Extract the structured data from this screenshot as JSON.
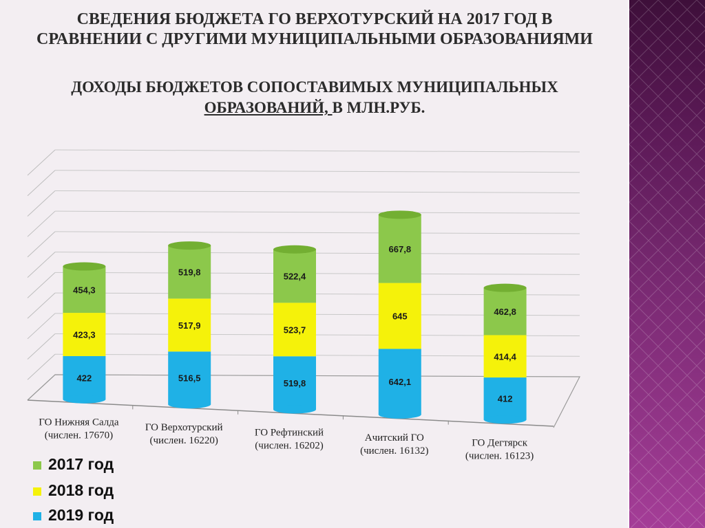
{
  "title_line1": "СВЕДЕНИЯ БЮДЖЕТА ГО ВЕРХОТУРСКИЙ НА 2017 ГОД В",
  "title_line2": "СРАВНЕНИИ С ДРУГИМИ МУНИЦИПАЛЬНЫМИ ОБРАЗОВАНИЯМИ",
  "subtitle_line1": "ДОХОДЫ БЮДЖЕТОВ СОПОСТАВИМЫХ МУНИЦИПАЛЬНЫХ",
  "subtitle_line2_underlined": "ОБРАЗОВАНИЙ, ",
  "subtitle_line2_rest": "В МЛН.РУБ.",
  "chart_data": {
    "type": "bar",
    "stacked": true,
    "categories": [
      [
        "ГО Нижняя Салда",
        "(числен. 17670)"
      ],
      [
        "ГО Верхотурский",
        "(числен. 16220)"
      ],
      [
        "ГО Рефтинский",
        "(числен. 16202)"
      ],
      [
        "Ачитский ГО",
        "(числен. 16132)"
      ],
      [
        "ГО Дегтярск",
        "(числен. 16123)"
      ]
    ],
    "series": [
      {
        "name": "2019 год",
        "color": "#1fb1e6",
        "values": [
          422,
          516.5,
          519.8,
          642.1,
          412
        ],
        "labels": [
          "422",
          "516,5",
          "519,8",
          "642,1",
          "412"
        ]
      },
      {
        "name": "2018 год",
        "color": "#f5f20a",
        "values": [
          423.3,
          517.9,
          523.7,
          645,
          414.4
        ],
        "labels": [
          "423,3",
          "517,9",
          "523,7",
          "645",
          "414,4"
        ]
      },
      {
        "name": "2017 год",
        "color": "#8cc84b",
        "values": [
          454.3,
          519.8,
          522.4,
          667.8,
          462.8
        ],
        "labels": [
          "454,3",
          "519,8",
          "522,4",
          "667,8",
          "462,8"
        ]
      }
    ],
    "grid": true,
    "ylim": [
      0,
      2200
    ]
  },
  "legend": [
    {
      "label": "2017 год",
      "color": "#8cc84b"
    },
    {
      "label": "2018 год",
      "color": "#f5f20a"
    },
    {
      "label": "2019 год",
      "color": "#1fb1e6"
    }
  ]
}
